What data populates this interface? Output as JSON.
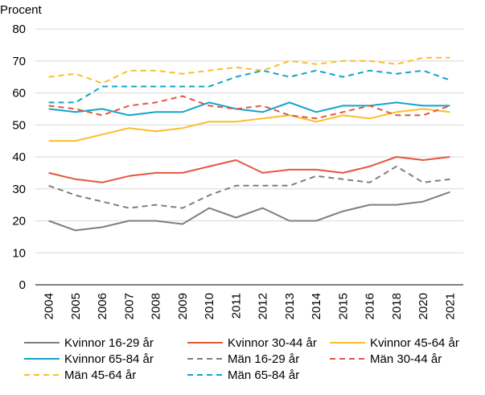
{
  "chart_data": {
    "type": "line",
    "ylabel": "Procent",
    "ylim": [
      0,
      80
    ],
    "yticks": [
      0,
      10,
      20,
      30,
      40,
      50,
      60,
      70,
      80
    ],
    "grid": true,
    "legend_position": "bottom",
    "categories": [
      "2004",
      "2005",
      "2006",
      "2007",
      "2008",
      "2009",
      "2010",
      "2011",
      "2012",
      "2013",
      "2014",
      "2015",
      "2016",
      "2018",
      "2020",
      "2021"
    ],
    "series": [
      {
        "name": "Kvinnor 16-29 år",
        "color": "#7f7f7f",
        "dash": "solid",
        "values": [
          20,
          17,
          18,
          20,
          20,
          19,
          24,
          21,
          24,
          20,
          20,
          23,
          25,
          25,
          26,
          29
        ]
      },
      {
        "name": "Kvinnor 30-44 år",
        "color": "#e4573d",
        "dash": "solid",
        "values": [
          35,
          33,
          32,
          34,
          35,
          35,
          37,
          39,
          35,
          36,
          36,
          35,
          37,
          40,
          39,
          40
        ]
      },
      {
        "name": "Kvinnor 45-64 år",
        "color": "#fbbd2c",
        "dash": "solid",
        "values": [
          45,
          45,
          47,
          49,
          48,
          49,
          51,
          51,
          52,
          53,
          51,
          53,
          52,
          54,
          55,
          54
        ]
      },
      {
        "name": "Kvinnor 65-84 år",
        "color": "#12a4cc",
        "dash": "solid",
        "values": [
          55,
          54,
          55,
          53,
          54,
          54,
          57,
          55,
          54,
          57,
          54,
          56,
          56,
          57,
          56,
          56
        ]
      },
      {
        "name": "Män 16-29 år",
        "color": "#7f7f7f",
        "dash": "dashed",
        "values": [
          31,
          28,
          26,
          24,
          25,
          24,
          28,
          31,
          31,
          31,
          34,
          33,
          32,
          37,
          32,
          33
        ]
      },
      {
        "name": "Män 30-44 år",
        "color": "#e4573d",
        "dash": "dashed",
        "values": [
          56,
          55,
          53,
          56,
          57,
          59,
          56,
          55,
          56,
          53,
          52,
          54,
          56,
          53,
          53,
          56
        ]
      },
      {
        "name": "Män 45-64 år",
        "color": "#fbbd2c",
        "dash": "dashed",
        "values": [
          65,
          66,
          63,
          67,
          67,
          66,
          67,
          68,
          67,
          70,
          69,
          70,
          70,
          69,
          71,
          71
        ]
      },
      {
        "name": "Män 65-84 år",
        "color": "#12a4cc",
        "dash": "dashed",
        "values": [
          57,
          57,
          62,
          62,
          62,
          62,
          62,
          65,
          67,
          65,
          67,
          65,
          67,
          66,
          67,
          64
        ]
      }
    ]
  }
}
